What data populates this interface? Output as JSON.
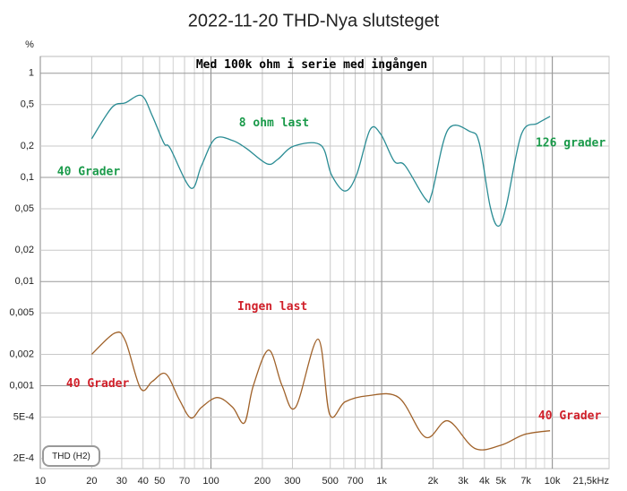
{
  "chart_data": {
    "type": "line",
    "title": "2022-11-20 THD-Nya slutsteget",
    "y_unit": "%",
    "xlim": [
      10,
      21500
    ],
    "ylim": [
      0.00016,
      1.45
    ],
    "log_x": true,
    "log_y": true,
    "grid": true,
    "xticks": [
      10,
      20,
      30,
      40,
      50,
      70,
      100,
      200,
      300,
      500,
      700,
      {
        "value": 1000,
        "label": "1k"
      },
      {
        "value": 2000,
        "label": "2k"
      },
      {
        "value": 3000,
        "label": "3k"
      },
      {
        "value": 4000,
        "label": "4k"
      },
      {
        "value": 5000,
        "label": "5k"
      },
      {
        "value": 7000,
        "label": "7k"
      },
      {
        "value": 10000,
        "label": "10k"
      },
      {
        "value": 21500,
        "label": "21,5kHz"
      }
    ],
    "xminor": [
      60,
      80,
      90,
      600,
      800,
      900,
      6000,
      8000,
      9000
    ],
    "yticks": [
      1,
      {
        "value": 0.5,
        "label": "0,5"
      },
      {
        "value": 0.2,
        "label": "0,2"
      },
      {
        "value": 0.1,
        "label": "0,1"
      },
      {
        "value": 0.05,
        "label": "0,05"
      },
      {
        "value": 0.02,
        "label": "0,02"
      },
      {
        "value": 0.01,
        "label": "0,01"
      },
      {
        "value": 0.005,
        "label": "0,005"
      },
      {
        "value": 0.002,
        "label": "0,002"
      },
      {
        "value": 0.001,
        "label": "0,001"
      },
      {
        "value": 0.0005,
        "label": "5E-4"
      },
      {
        "value": 0.0002,
        "label": "2E-4"
      }
    ],
    "series": [
      {
        "name": "THD (H2)",
        "color": "#2a8c94",
        "x": [
          20,
          26.3,
          31.5,
          39.2,
          45.3,
          53,
          57.7,
          76.2,
          88,
          105.6,
          134,
          161,
          213,
          246,
          306,
          440,
          508,
          610,
          713,
          855,
          988,
          1184,
          1370,
          1808,
          1968,
          2445,
          3309,
          3733,
          4317,
          4813,
          5368,
          6590,
          8191,
          9700
        ],
        "values": [
          0.235,
          0.47,
          0.52,
          0.61,
          0.39,
          0.213,
          0.19,
          0.079,
          0.13,
          0.235,
          0.226,
          0.19,
          0.135,
          0.149,
          0.2,
          0.204,
          0.106,
          0.074,
          0.106,
          0.287,
          0.26,
          0.143,
          0.13,
          0.062,
          0.07,
          0.287,
          0.275,
          0.213,
          0.053,
          0.034,
          0.053,
          0.26,
          0.33,
          0.385
        ]
      },
      {
        "color": "#a0622a",
        "x": [
          20,
          27.3,
          31.5,
          38.7,
          45.3,
          54.3,
          65.1,
          76.2,
          88,
          109,
          134,
          157,
          177,
          218,
          261,
          313,
          424,
          496,
          610,
          824,
          1259,
          1808,
          2445,
          3516,
          5047,
          6839,
          9700
        ],
        "values": [
          0.002,
          0.0032,
          0.0027,
          0.00094,
          0.0011,
          0.0013,
          0.00074,
          0.00049,
          0.00062,
          0.00077,
          0.00062,
          0.00044,
          0.001,
          0.0022,
          0.001,
          0.00062,
          0.0028,
          0.00053,
          0.0007,
          0.0008,
          0.00077,
          0.00032,
          0.00046,
          0.00025,
          0.00027,
          0.00034,
          0.00037
        ]
      }
    ],
    "annotations": [
      {
        "text": "Med 100k ohm i serie med ingången",
        "x": 389,
        "y": 1.2,
        "color": "#000000"
      },
      {
        "text": "8 ohm last",
        "x": 234,
        "y": 0.33,
        "color": "#1a9a4a"
      },
      {
        "text": "126 grader",
        "x": 12800,
        "y": 0.212,
        "color": "#1a9a4a"
      },
      {
        "text": "40 Grader",
        "x": 19.2,
        "y": 0.113,
        "color": "#1a9a4a"
      },
      {
        "text": "Ingen last",
        "x": 229,
        "y": 0.0057,
        "color": "#d0202a"
      },
      {
        "text": "40 Grader",
        "x": 21.7,
        "y": 0.00104,
        "color": "#d0202a"
      },
      {
        "text": "40 Grader",
        "x": 12650,
        "y": 0.00051,
        "color": "#d0202a"
      }
    ]
  }
}
